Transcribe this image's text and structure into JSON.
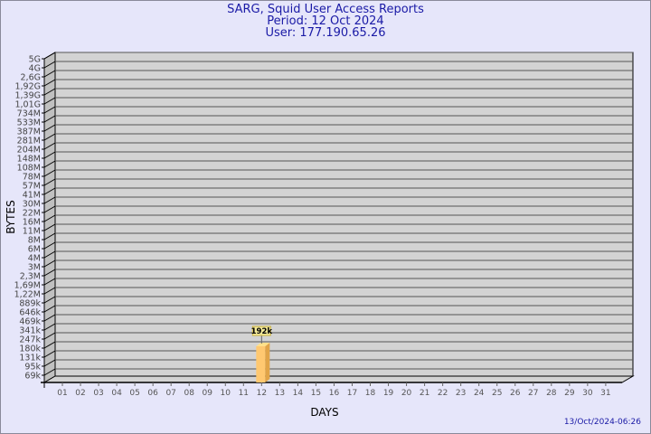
{
  "chart_data": {
    "type": "bar",
    "title": "SARG, Squid User Access Reports",
    "subtitle_period": "Period: 12 Oct 2024",
    "subtitle_user": "User: 177.190.65.26",
    "xlabel": "DAYS",
    "ylabel": "BYTES",
    "y_scale": "log",
    "y_tick_labels": [
      "5G",
      "4G",
      "2,6G",
      "1,92G",
      "1,39G",
      "1,01G",
      "734M",
      "533M",
      "387M",
      "281M",
      "204M",
      "148M",
      "108M",
      "78M",
      "57M",
      "41M",
      "30M",
      "22M",
      "16M",
      "11M",
      "8M",
      "6M",
      "4M",
      "3M",
      "2,3M",
      "1,69M",
      "1,22M",
      "889k",
      "646k",
      "469k",
      "341k",
      "247k",
      "180k",
      "131k",
      "95k",
      "69k"
    ],
    "categories": [
      "01",
      "02",
      "03",
      "04",
      "05",
      "06",
      "07",
      "08",
      "09",
      "10",
      "11",
      "12",
      "13",
      "14",
      "15",
      "16",
      "17",
      "18",
      "19",
      "20",
      "21",
      "22",
      "23",
      "24",
      "25",
      "26",
      "27",
      "28",
      "29",
      "30",
      "31"
    ],
    "bars": [
      {
        "day": "12",
        "value_label": "192k",
        "value": 192000
      }
    ],
    "grid": true,
    "colors": {
      "background": "#e6e6fa",
      "plot": "#d3d3d3",
      "bar": "#ffc870",
      "bar_side": "#e0a448",
      "bar_top": "#ffe08a",
      "title": "#1a1aa6",
      "label_box": "#f5eb9a"
    },
    "footer_timestamp": "13/Oct/2024-06:26"
  }
}
